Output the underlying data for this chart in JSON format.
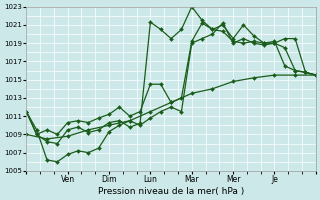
{
  "xlabel": "Pression niveau de la mer( hPa )",
  "bg_color": "#cce8e8",
  "grid_color": "#ffffff",
  "line_color": "#1a5c1a",
  "ylim": [
    1005,
    1023
  ],
  "yticks": [
    1005,
    1007,
    1009,
    1011,
    1013,
    1015,
    1017,
    1019,
    1021,
    1023
  ],
  "x_tick_positions": [
    0,
    12,
    24,
    36,
    48,
    60,
    72,
    84
  ],
  "x_tick_labels": [
    "",
    "Ven",
    "Dim",
    "Lun",
    "Mar",
    "Mer",
    "Je",
    ""
  ],
  "xlim": [
    0,
    84
  ],
  "series1_x": [
    0,
    3,
    6,
    9,
    12,
    15,
    18,
    21,
    24,
    27,
    30,
    33,
    36,
    39,
    42,
    45,
    48,
    51,
    54,
    57,
    60,
    63,
    66,
    69,
    72,
    75,
    78,
    81,
    84
  ],
  "series1_y": [
    1011.5,
    1009.0,
    1009.5,
    1009.0,
    1010.3,
    1010.5,
    1010.3,
    1010.8,
    1011.2,
    1012.0,
    1011.0,
    1011.5,
    1014.5,
    1014.5,
    1012.5,
    1013.0,
    1019.2,
    1021.2,
    1020.5,
    1020.3,
    1019.2,
    1019.0,
    1019.2,
    1019.0,
    1019.0,
    1019.5,
    1019.5,
    1015.8,
    1015.5
  ],
  "series2_x": [
    0,
    3,
    6,
    9,
    12,
    15,
    18,
    21,
    24,
    27,
    30,
    33,
    36,
    39,
    42,
    45,
    48,
    51,
    54,
    57,
    60,
    63,
    66,
    69,
    72,
    75,
    78,
    81,
    84
  ],
  "series2_y": [
    1011.5,
    1009.0,
    1008.2,
    1008.0,
    1009.5,
    1009.8,
    1009.2,
    1009.5,
    1010.3,
    1010.5,
    1009.8,
    1010.2,
    1021.3,
    1020.5,
    1019.5,
    1020.5,
    1023.0,
    1021.5,
    1020.5,
    1021.0,
    1019.5,
    1021.0,
    1019.8,
    1019.0,
    1019.2,
    1016.5,
    1016.0,
    1015.8,
    1015.5
  ],
  "series3_x": [
    0,
    6,
    12,
    18,
    24,
    30,
    36,
    42,
    48,
    54,
    60,
    66,
    72,
    78,
    84
  ],
  "series3_y": [
    1009.0,
    1008.5,
    1008.8,
    1009.5,
    1010.0,
    1010.5,
    1011.5,
    1012.5,
    1013.5,
    1014.0,
    1014.8,
    1015.2,
    1015.5,
    1015.5,
    1015.5
  ],
  "series4_x": [
    0,
    3,
    6,
    9,
    12,
    15,
    18,
    21,
    24,
    27,
    30,
    33,
    36,
    39,
    42,
    45,
    48,
    51,
    54,
    57,
    60,
    63,
    66,
    69,
    72,
    75,
    78,
    81,
    84
  ],
  "series4_y": [
    1011.5,
    1009.5,
    1006.2,
    1006.0,
    1006.8,
    1007.2,
    1007.0,
    1007.5,
    1009.3,
    1010.0,
    1010.5,
    1010.0,
    1010.8,
    1011.5,
    1012.0,
    1011.5,
    1019.0,
    1019.5,
    1020.0,
    1021.2,
    1019.0,
    1019.5,
    1019.0,
    1018.8,
    1019.0,
    1018.5,
    1016.0,
    1015.8,
    1015.5
  ]
}
